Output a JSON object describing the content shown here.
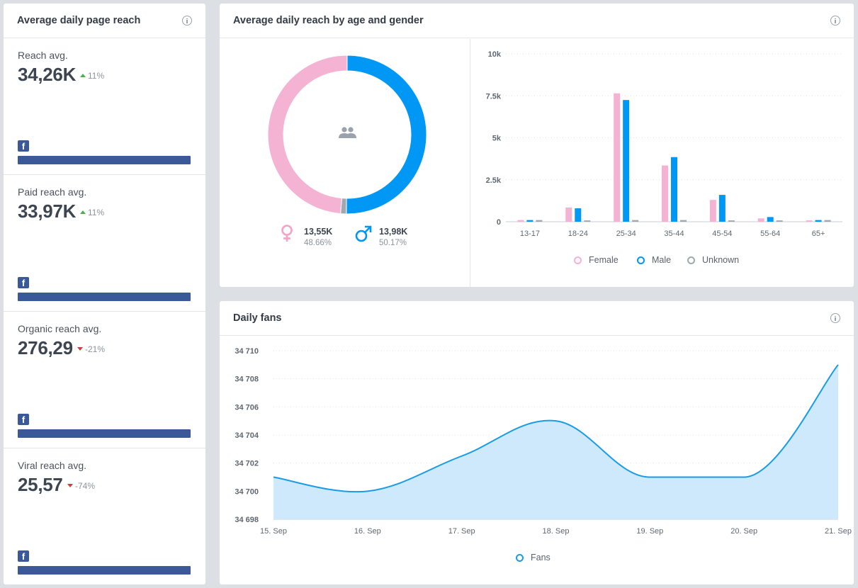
{
  "left_card": {
    "title": "Average daily page reach",
    "metrics": [
      {
        "label": "Reach avg.",
        "value": "34,26K",
        "change": "11%",
        "direction": "up"
      },
      {
        "label": "Paid reach avg.",
        "value": "33,97K",
        "change": "11%",
        "direction": "up"
      },
      {
        "label": "Organic reach avg.",
        "value": "276,29",
        "change": "-21%",
        "direction": "down"
      },
      {
        "label": "Viral reach avg.",
        "value": "25,57",
        "change": "-74%",
        "direction": "down"
      }
    ],
    "network_icon": "facebook-icon"
  },
  "gender_card": {
    "title": "Average daily reach by age and gender",
    "female": {
      "value": "13,55K",
      "pct": "48.66%"
    },
    "male": {
      "value": "13,98K",
      "pct": "50.17%"
    }
  },
  "fans_card": {
    "title": "Daily fans"
  },
  "colors": {
    "female": "#f4b3d2",
    "male": "#0097f5",
    "unknown": "#a0a8b0",
    "facebook": "#3b5998",
    "fans_line": "#1a9be8",
    "fans_fill": "#cde9fb"
  },
  "chart_data": [
    {
      "type": "pie",
      "subtype": "donut",
      "categories": [
        "Female",
        "Male",
        "Unknown"
      ],
      "values": [
        48.66,
        50.17,
        1.17
      ]
    },
    {
      "type": "bar",
      "categories": [
        "13-17",
        "18-24",
        "25-34",
        "35-44",
        "45-54",
        "55-64",
        "65+"
      ],
      "series": [
        {
          "name": "Female",
          "values": [
            100,
            850,
            7650,
            3350,
            1300,
            200,
            80
          ]
        },
        {
          "name": "Male",
          "values": [
            100,
            800,
            7250,
            3850,
            1600,
            280,
            100
          ]
        },
        {
          "name": "Unknown",
          "values": [
            100,
            80,
            100,
            100,
            80,
            80,
            100
          ]
        }
      ],
      "yticks": [
        "0",
        "2.5k",
        "5k",
        "7.5k",
        "10k"
      ],
      "ylim": [
        0,
        10000
      ],
      "legend": "bottom"
    },
    {
      "type": "area",
      "x": [
        "15. Sep",
        "16. Sep",
        "17. Sep",
        "18. Sep",
        "19. Sep",
        "20. Sep",
        "21. Sep"
      ],
      "series": [
        {
          "name": "Fans",
          "values": [
            34701,
            34700,
            34702.5,
            34705,
            34701,
            34701,
            34709
          ]
        }
      ],
      "yticks": [
        "34 698",
        "34 700",
        "34 702",
        "34 704",
        "34 706",
        "34 708",
        "34 710"
      ],
      "ylim": [
        34698,
        34710
      ],
      "legend": "bottom"
    }
  ]
}
